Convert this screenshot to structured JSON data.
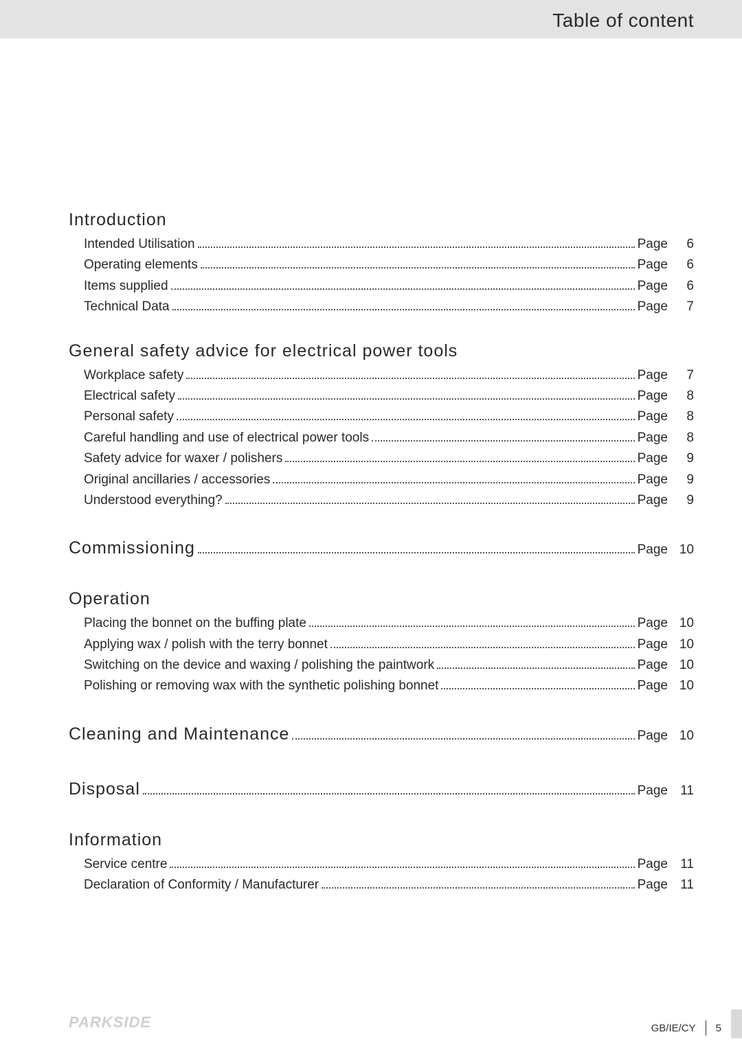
{
  "header": {
    "title": "Table of content"
  },
  "page_word": "Page",
  "sections": [
    {
      "heading": "Introduction",
      "entries": [
        {
          "label": "Intended Utilisation",
          "page": "6"
        },
        {
          "label": "Operating elements",
          "page": "6"
        },
        {
          "label": "Items supplied",
          "page": "6"
        },
        {
          "label": "Technical Data",
          "page": "7"
        }
      ]
    },
    {
      "heading": "General safety advice for electrical power tools",
      "entries": [
        {
          "label": "Workplace safety",
          "page": "7"
        },
        {
          "label": "Electrical safety",
          "page": "8"
        },
        {
          "label": "Personal safety",
          "page": "8"
        },
        {
          "label": "Careful handling and use of electrical power tools",
          "page": "8"
        },
        {
          "label": "Safety advice for waxer / polishers",
          "page": "9"
        },
        {
          "label": "Original ancillaries / accessories",
          "page": "9"
        },
        {
          "label": "Understood everything?",
          "page": "9"
        }
      ]
    },
    {
      "heading": "Commissioning",
      "inline_page": "10",
      "entries": []
    },
    {
      "heading": "Operation",
      "entries": [
        {
          "label": "Placing the bonnet on the buffing plate",
          "page": "10"
        },
        {
          "label": "Applying wax / polish with the terry bonnet",
          "page": "10"
        },
        {
          "label": "Switching on the device and waxing / polishing the paintwork",
          "page": "10"
        },
        {
          "label": "Polishing or removing wax with the synthetic polishing bonnet",
          "page": "10"
        }
      ]
    },
    {
      "heading": "Cleaning and Maintenance",
      "inline_page": "10",
      "entries": []
    },
    {
      "heading": "Disposal",
      "inline_page": "11",
      "entries": []
    },
    {
      "heading": "Information",
      "entries": [
        {
          "label": "Service centre",
          "page": "11"
        },
        {
          "label": "Declaration of Conformity / Manufacturer",
          "page": "11"
        }
      ]
    }
  ],
  "footer": {
    "brand": "PARKSIDE",
    "region": "GB/IE/CY",
    "page_number": "5"
  },
  "colors": {
    "band": "#e3e3e3",
    "text": "#2a2a2a",
    "brand": "#cfcfcf",
    "tab": "#d9d9d9"
  }
}
